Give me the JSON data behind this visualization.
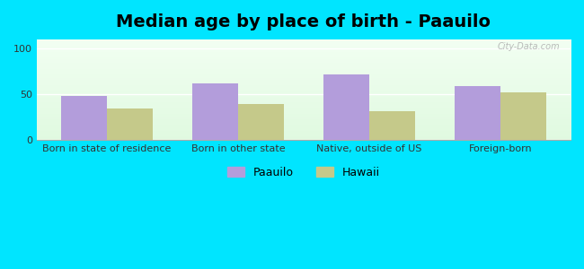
{
  "title": "Median age by place of birth - Paauilo",
  "categories": [
    "Born in state of residence",
    "Born in other state",
    "Native, outside of US",
    "Foreign-born"
  ],
  "paauilo_values": [
    48,
    62,
    72,
    59
  ],
  "hawaii_values": [
    35,
    39,
    32,
    52
  ],
  "paauilo_color": "#b39ddb",
  "hawaii_color": "#c5c98a",
  "ylim": [
    0,
    110
  ],
  "yticks": [
    0,
    50,
    100
  ],
  "bar_width": 0.35,
  "outer_bg": "#00e5ff",
  "title_fontsize": 14,
  "tick_fontsize": 8,
  "legend_labels": [
    "Paauilo",
    "Hawaii"
  ],
  "watermark": "City-Data.com"
}
